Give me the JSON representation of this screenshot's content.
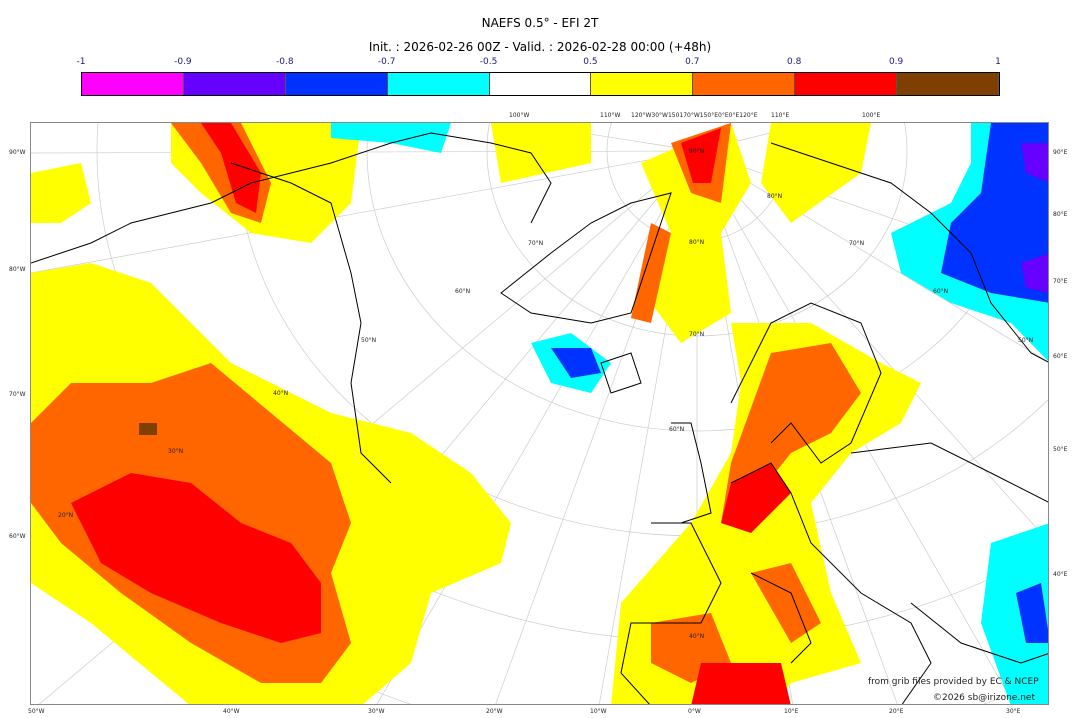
{
  "header": {
    "title": "NAEFS 0.5° - EFI 2T",
    "subtitle": "Init. : 2026-02-26 00Z - Valid. : 2026-02-28 00:00 (+48h)"
  },
  "colorbar": {
    "ticks": [
      "-1",
      "-0.9",
      "-0.8",
      "-0.7",
      "-0.5",
      "0.5",
      "0.7",
      "0.8",
      "0.9",
      "1"
    ],
    "colors": [
      "#ff00ff",
      "#6600ff",
      "#0033ff",
      "#00ffff",
      "#ffffff",
      "#ffff00",
      "#ff6600",
      "#ff0000",
      "#7f3f00"
    ]
  },
  "axes": {
    "left": [
      "90°W",
      "80°W",
      "70°W",
      "60°W"
    ],
    "right": [
      "90°E",
      "80°E",
      "70°E",
      "60°E",
      "50°E",
      "40°E"
    ],
    "bottom": [
      "50°W",
      "40°W",
      "30°W",
      "20°W",
      "10°W",
      "0°W",
      "10°E",
      "20°E",
      "30°E"
    ],
    "top": [
      "100°W",
      "110°W",
      "120°W30°W150170°W150°E0°E0°E120°E",
      "110°E",
      "100°E"
    ],
    "lat": [
      "90°N",
      "80°N",
      "80°N",
      "70°N",
      "70°N",
      "70°N",
      "60°N",
      "60°N",
      "60°N",
      "50°N",
      "50°N",
      "40°N",
      "40°N",
      "30°N",
      "20°N"
    ]
  },
  "credits": {
    "source": "from grib files provided by EC & NCEP",
    "copyright": "©2026 sb@irizone.net"
  }
}
